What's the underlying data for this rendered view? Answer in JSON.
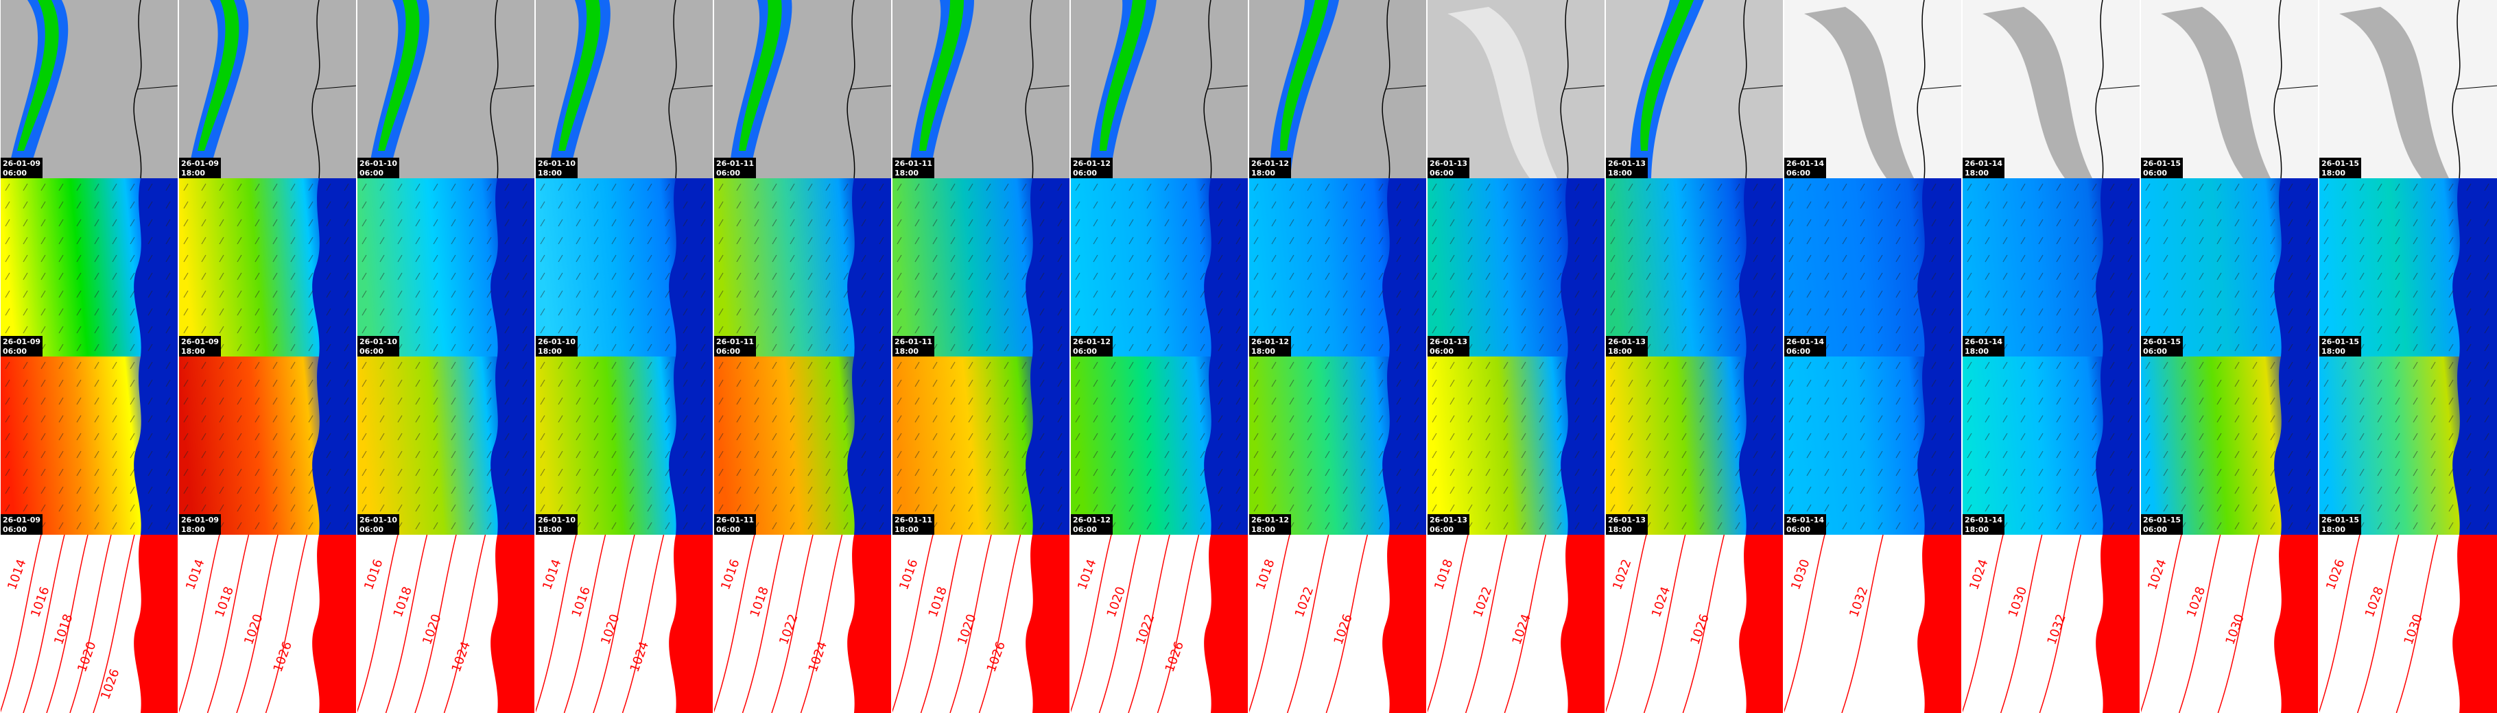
{
  "panels": [
    {
      "date": "26-01-09",
      "time": "06:00",
      "isobars": [
        1014,
        1016,
        1018,
        1020,
        1026
      ]
    },
    {
      "date": "26-01-09",
      "time": "18:00",
      "isobars": [
        1014,
        1018,
        1020,
        1026
      ]
    },
    {
      "date": "26-01-10",
      "time": "06:00",
      "isobars": [
        1016,
        1018,
        1020,
        1024
      ]
    },
    {
      "date": "26-01-10",
      "time": "18:00",
      "isobars": [
        1014,
        1016,
        1020,
        1024
      ]
    },
    {
      "date": "26-01-11",
      "time": "06:00",
      "isobars": [
        1016,
        1018,
        1022,
        1024
      ]
    },
    {
      "date": "26-01-11",
      "time": "18:00",
      "isobars": [
        1016,
        1018,
        1020,
        1026
      ]
    },
    {
      "date": "26-01-12",
      "time": "06:00",
      "isobars": [
        1014,
        1020,
        1022,
        1026
      ]
    },
    {
      "date": "26-01-12",
      "time": "18:00",
      "isobars": [
        1018,
        1022,
        1026
      ]
    },
    {
      "date": "26-01-13",
      "time": "06:00",
      "isobars": [
        1018,
        1022,
        1024
      ]
    },
    {
      "date": "26-01-13",
      "time": "18:00",
      "isobars": [
        1022,
        1024,
        1026
      ]
    },
    {
      "date": "26-01-14",
      "time": "06:00",
      "isobars": [
        1030,
        1032
      ]
    },
    {
      "date": "26-01-14",
      "time": "18:00",
      "isobars": [
        1024,
        1030,
        1032
      ]
    },
    {
      "date": "26-01-15",
      "time": "06:00",
      "isobars": [
        1024,
        1028,
        1030
      ]
    },
    {
      "date": "26-01-15",
      "time": "18:00",
      "isobars": [
        1026,
        1028,
        1030
      ]
    }
  ]
}
